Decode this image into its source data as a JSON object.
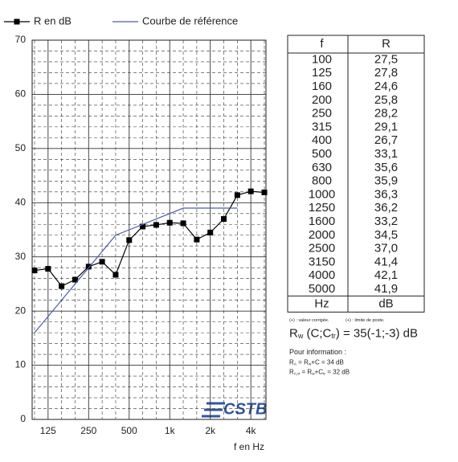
{
  "chart_data": {
    "type": "line",
    "legend": "top",
    "x_label": "f en Hz",
    "logo": "CSTB",
    "categories": [
      null,
      "125",
      null,
      null,
      "250",
      null,
      null,
      "500",
      null,
      null,
      "1k",
      null,
      null,
      "2k",
      null,
      null,
      "4k",
      null
    ],
    "series": [
      {
        "name": "R en dB",
        "color": "#000000",
        "marker": "square",
        "values": [
          27.5,
          27.8,
          24.6,
          25.8,
          28.2,
          29.1,
          26.7,
          33.1,
          35.6,
          35.9,
          36.3,
          36.2,
          33.2,
          34.5,
          37.0,
          41.4,
          42.1,
          41.9
        ]
      },
      {
        "name": "Courbe de référence",
        "color": "#4a5ca8",
        "values": [
          16,
          19,
          22,
          25,
          28,
          31,
          34,
          35,
          36,
          37,
          38,
          39,
          39,
          39,
          39,
          39,
          null,
          null
        ]
      }
    ],
    "ylim": [
      0,
      70
    ],
    "yticks": [
      0,
      10,
      20,
      30,
      40,
      50,
      60,
      70
    ],
    "y_minor_ticks": [
      2,
      4,
      6,
      8,
      12,
      14,
      16,
      18,
      22,
      24,
      26,
      28,
      32,
      34,
      36,
      38,
      42,
      44,
      46,
      48,
      52,
      54,
      56,
      58,
      62,
      64,
      66,
      68
    ],
    "grid": true
  },
  "table": {
    "header": [
      "f",
      "R"
    ],
    "rows": [
      [
        "100",
        "27,5"
      ],
      [
        "125",
        "27,8"
      ],
      [
        "160",
        "24,6"
      ],
      [
        "200",
        "25,8"
      ],
      [
        "250",
        "28,2"
      ],
      [
        "315",
        "29,1"
      ],
      [
        "400",
        "26,7"
      ],
      [
        "500",
        "33,1"
      ],
      [
        "630",
        "35,6"
      ],
      [
        "800",
        "35,9"
      ],
      [
        "1000",
        "36,3"
      ],
      [
        "1250",
        "36,2"
      ],
      [
        "1600",
        "33,2"
      ],
      [
        "2000",
        "34,5"
      ],
      [
        "2500",
        "37,0"
      ],
      [
        "3150",
        "41,4"
      ],
      [
        "4000",
        "42,1"
      ],
      [
        "5000",
        "41,9"
      ]
    ],
    "footer": [
      "Hz",
      "dB"
    ]
  },
  "notes": [
    "(+) : valeur corrigée.",
    "(+) : limite de poste."
  ],
  "rating": [
    "R",
    "w",
    " (C;C",
    "tr",
    ") = 35(-1;-3) dB"
  ],
  "info": {
    "title": "Pour information :",
    "lines": [
      [
        "R",
        "A",
        " = R",
        "w",
        "+C = 34 dB"
      ],
      [
        "R",
        "A,tr",
        " = R",
        "w",
        "+C",
        "tr",
        " = 32 dB"
      ]
    ]
  }
}
